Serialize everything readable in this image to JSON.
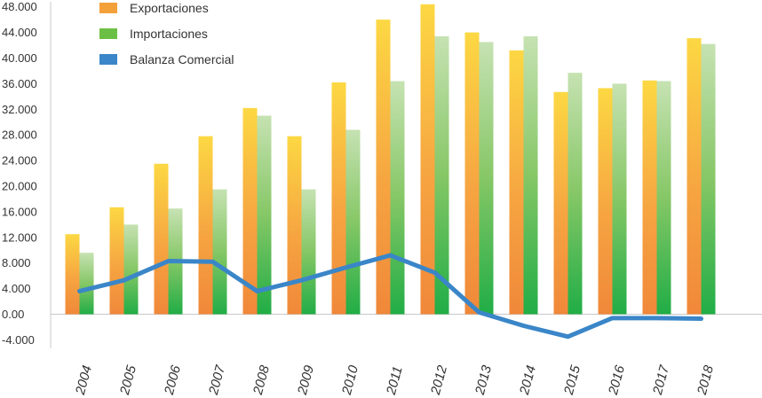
{
  "chart_data": {
    "type": "bar",
    "categories": [
      "2004",
      "2005",
      "2006",
      "2007",
      "2008",
      "2009",
      "2010",
      "2011",
      "2012",
      "2013",
      "2014",
      "2015",
      "2016",
      "2017",
      "2018"
    ],
    "series": [
      {
        "name": "Exportaciones",
        "type": "bar",
        "color": "#f4a03a",
        "values": [
          12500,
          16700,
          23500,
          27800,
          32200,
          27800,
          36200,
          46000,
          48400,
          44000,
          41200,
          34700,
          35300,
          36500,
          43100
        ]
      },
      {
        "name": "Importaciones",
        "type": "bar",
        "color": "#6cbf45",
        "values": [
          9600,
          14000,
          16500,
          19500,
          31000,
          19500,
          28800,
          36400,
          43400,
          42500,
          43400,
          37700,
          36000,
          36400,
          42200
        ]
      },
      {
        "name": "Balanza Comercial",
        "type": "line",
        "color": "#3a86c8",
        "values": [
          3600,
          5300,
          8300,
          8200,
          3600,
          5300,
          7300,
          9200,
          6500,
          300,
          -1800,
          -3500,
          -600,
          -600,
          -700
        ]
      }
    ],
    "yticks": [
      "48.000",
      "44.000",
      "40.000",
      "36.000",
      "32.000",
      "28.000",
      "24.000",
      "20.000",
      "16.000",
      "12.000",
      "8.000",
      "4.000",
      "0.00",
      "-4.000"
    ],
    "ylim": [
      -4000,
      48000
    ],
    "legend_position": "top-left"
  }
}
